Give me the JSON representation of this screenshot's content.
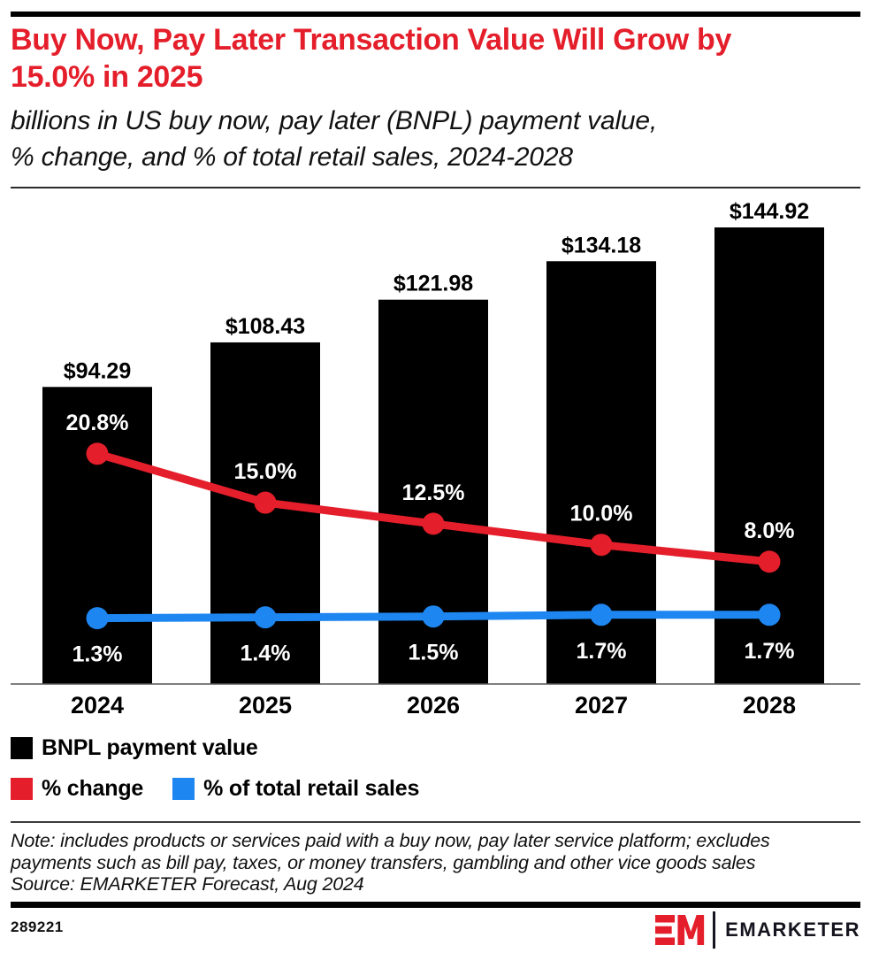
{
  "colors": {
    "accent_red": "#e41e2a",
    "accent_blue": "#1e86f0",
    "bar_black": "#000000",
    "axis": "#555555"
  },
  "header": {
    "title_line1": "Buy Now, Pay Later Transaction Value Will Grow by",
    "title_line2": "15.0% in 2025",
    "subtitle_line1": "billions in US buy now, pay later (BNPL) payment value,",
    "subtitle_line2": "% change, and % of total retail sales, 2024-2028"
  },
  "chart_data": {
    "type": "bar",
    "title": "Buy Now, Pay Later Transaction Value Will Grow by 15.0% in 2025",
    "subtitle": "billions in US buy now, pay later (BNPL) payment value, % change, and % of total retail sales, 2024-2028",
    "categories": [
      "2024",
      "2025",
      "2026",
      "2027",
      "2028"
    ],
    "series": [
      {
        "name": "BNPL payment value",
        "type": "bar",
        "unit": "US$ billions",
        "values": [
          94.29,
          108.43,
          121.98,
          134.18,
          144.92
        ],
        "labels": [
          "$94.29",
          "$108.43",
          "$121.98",
          "$134.18",
          "$144.92"
        ],
        "color": "#000000"
      },
      {
        "name": "% change",
        "type": "line",
        "unit": "%",
        "values": [
          20.8,
          15.0,
          12.5,
          10.0,
          8.0
        ],
        "labels": [
          "20.8%",
          "15.0%",
          "12.5%",
          "10.0%",
          "8.0%"
        ],
        "color": "#e41e2a"
      },
      {
        "name": "% of total retail sales",
        "type": "line",
        "unit": "%",
        "values": [
          1.3,
          1.4,
          1.5,
          1.7,
          1.7
        ],
        "labels": [
          "1.3%",
          "1.4%",
          "1.5%",
          "1.7%",
          "1.7%"
        ],
        "color": "#1e86f0"
      }
    ],
    "ylim_bars": [
      0,
      145
    ],
    "grid": false,
    "legend_position": "bottom"
  },
  "legend": {
    "items": [
      {
        "label": "BNPL payment value",
        "color": "#000000"
      },
      {
        "label": "% change",
        "color": "#e41e2a"
      },
      {
        "label": "% of total retail sales",
        "color": "#1e86f0"
      }
    ]
  },
  "footnote": {
    "note_line1": "Note: includes products or services paid with a buy now, pay later service platform; excludes",
    "note_line2": "payments such as bill pay, taxes, or money transfers, gambling and other vice goods sales",
    "source_line": "Source: EMARKETER Forecast, Aug 2024"
  },
  "footer": {
    "chart_id": "289221",
    "logo_monogram": "EM",
    "logo_text": "EMARKETER"
  }
}
